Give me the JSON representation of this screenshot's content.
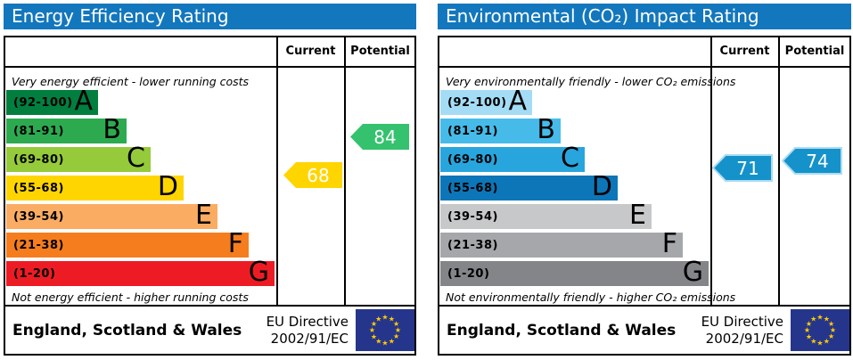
{
  "accent": {
    "header_blue": "#1377bd",
    "eu_flag_blue": "#26358c",
    "eu_star_yellow": "#ffcc00"
  },
  "panels": [
    {
      "title": "Energy Efficiency Rating",
      "columns": {
        "current_label": "Current",
        "potential_label": "Potential"
      },
      "top_caption": "Very energy efficient - lower running costs",
      "bottom_caption": "Not energy efficient - higher running costs",
      "bands": [
        {
          "range": "(92-100)",
          "letter": "A",
          "color": "#027e3e"
        },
        {
          "range": "(81-91)",
          "letter": "B",
          "color": "#2daa50"
        },
        {
          "range": "(69-80)",
          "letter": "C",
          "color": "#95ca3b"
        },
        {
          "range": "(55-68)",
          "letter": "D",
          "color": "#ffd500"
        },
        {
          "range": "(39-54)",
          "letter": "E",
          "color": "#fbac63"
        },
        {
          "range": "(21-38)",
          "letter": "F",
          "color": "#f57d1e"
        },
        {
          "range": "(1-20)",
          "letter": "G",
          "color": "#ed1c24"
        }
      ],
      "current": {
        "value": "68",
        "color": "#ffd500"
      },
      "potential": {
        "value": "84",
        "color": "#34c26e"
      },
      "footer": {
        "region": "England, Scotland & Wales",
        "directive_line1": "EU Directive",
        "directive_line2": "2002/91/EC"
      }
    },
    {
      "title": "Environmental (CO₂) Impact Rating",
      "columns": {
        "current_label": "Current",
        "potential_label": "Potential"
      },
      "top_caption": "Very environmentally friendly - lower CO₂ emissions",
      "bottom_caption": "Not environmentally friendly - higher CO₂ emissions",
      "bands": [
        {
          "range": "(92-100)",
          "letter": "A",
          "color": "#a4dcf5"
        },
        {
          "range": "(81-91)",
          "letter": "B",
          "color": "#46bbe9"
        },
        {
          "range": "(69-80)",
          "letter": "C",
          "color": "#28a5dd"
        },
        {
          "range": "(55-68)",
          "letter": "D",
          "color": "#0d76b8"
        },
        {
          "range": "(39-54)",
          "letter": "E",
          "color": "#c7c8ca"
        },
        {
          "range": "(21-38)",
          "letter": "F",
          "color": "#a5a7aa"
        },
        {
          "range": "(1-20)",
          "letter": "G",
          "color": "#838588"
        }
      ],
      "current": {
        "value": "71",
        "color": "#1592c9",
        "stroke": "#abdcf2"
      },
      "potential": {
        "value": "74",
        "color": "#1592c9",
        "stroke": "#abdcf2"
      },
      "footer": {
        "region": "England, Scotland & Wales",
        "directive_line1": "EU Directive",
        "directive_line2": "2002/91/EC"
      }
    }
  ],
  "chart_data": [
    {
      "type": "bar",
      "title": "Energy Efficiency Rating",
      "categories": [
        "A (92-100)",
        "B (81-91)",
        "C (69-80)",
        "D (55-68)",
        "E (39-54)",
        "F (21-38)",
        "G (1-20)"
      ],
      "series": [
        {
          "name": "Current",
          "values": [
            68
          ],
          "band": "D",
          "color": "#ffd500"
        },
        {
          "name": "Potential",
          "values": [
            84
          ],
          "band": "B",
          "color": "#34c26e"
        }
      ],
      "scale_range": [
        1,
        100
      ],
      "top_caption": "Very energy efficient - lower running costs",
      "bottom_caption": "Not energy efficient - higher running costs",
      "footer": "England, Scotland & Wales | EU Directive 2002/91/EC"
    },
    {
      "type": "bar",
      "title": "Environmental (CO₂) Impact Rating",
      "categories": [
        "A (92-100)",
        "B (81-91)",
        "C (69-80)",
        "D (55-68)",
        "E (39-54)",
        "F (21-38)",
        "G (1-20)"
      ],
      "series": [
        {
          "name": "Current",
          "values": [
            71
          ],
          "band": "C",
          "color": "#1592c9"
        },
        {
          "name": "Potential",
          "values": [
            74
          ],
          "band": "C",
          "color": "#1592c9"
        }
      ],
      "scale_range": [
        1,
        100
      ],
      "top_caption": "Very environmentally friendly - lower CO₂ emissions",
      "bottom_caption": "Not environmentally friendly - higher CO₂ emissions",
      "footer": "England, Scotland & Wales | EU Directive 2002/91/EC"
    }
  ]
}
